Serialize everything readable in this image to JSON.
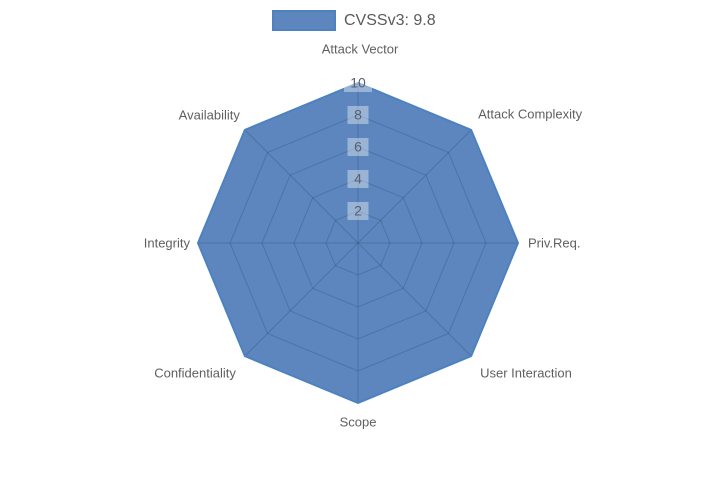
{
  "chart_data": {
    "type": "radar",
    "categories": [
      "Attack Vector",
      "Attack Complexity",
      "Priv.Req.",
      "User Interaction",
      "Scope",
      "Confidentiality",
      "Integrity",
      "Availability"
    ],
    "series": [
      {
        "name": "CVSSv3: 9.8",
        "values": [
          10,
          10,
          10,
          10,
          10,
          10,
          10,
          10
        ]
      }
    ],
    "radial_ticks": [
      2,
      4,
      6,
      8,
      10
    ],
    "radial_range": [
      0,
      10
    ],
    "angular_start": "top",
    "direction": "clockwise",
    "grid": true,
    "legend_position": "top-center",
    "colors": {
      "series_fill": "#4575b4",
      "series_fill_opacity": 0.88,
      "series_line": "#4d82c0",
      "grid_line": "rgba(25,50,85,0.22)",
      "tick_label": "#57606e",
      "tick_box": "rgba(255,255,255,0.38)",
      "axis_label": "#5f5f5f",
      "legend_text": "#5a5a5a"
    }
  }
}
